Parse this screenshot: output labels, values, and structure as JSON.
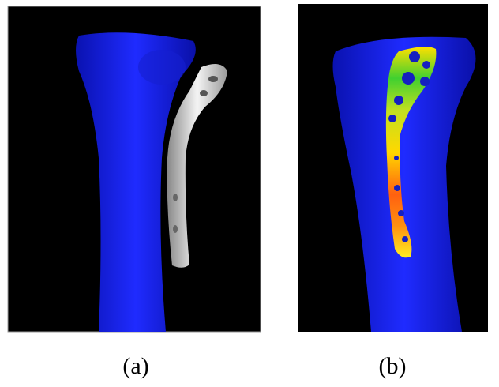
{
  "panels": [
    {
      "caption": "(a)"
    },
    {
      "caption": "(b)"
    }
  ]
}
